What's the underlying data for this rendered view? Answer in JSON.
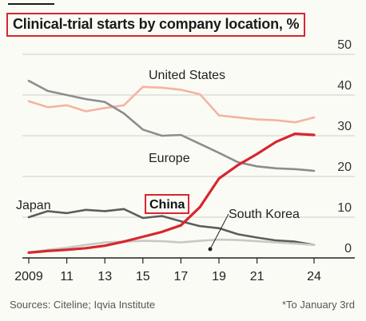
{
  "chart_data": {
    "type": "line",
    "title": "Clinical-trial starts by company location, %",
    "x": [
      2009,
      2010,
      2011,
      2012,
      2013,
      2014,
      2015,
      2016,
      2017,
      2018,
      2019,
      2020,
      2021,
      2022,
      2023,
      2024
    ],
    "x_tick_labels": [
      "2009",
      "11",
      "13",
      "15",
      "17",
      "19",
      "21",
      "24"
    ],
    "x_tick_values": [
      2009,
      2011,
      2013,
      2015,
      2017,
      2019,
      2021,
      2024
    ],
    "y_ticks": [
      0,
      10,
      20,
      30,
      40,
      50
    ],
    "ylim": [
      0,
      50
    ],
    "y_axis_side": "right",
    "grid": "horizontal",
    "series": [
      {
        "name": "United States",
        "color": "#f4b4a0",
        "highlight": false,
        "values": [
          38.5,
          37,
          37.5,
          36,
          36.8,
          37.5,
          42,
          41.8,
          41.3,
          40.2,
          35,
          34.5,
          34,
          33.8,
          33.3,
          34.5
        ]
      },
      {
        "name": "Europe",
        "color": "#8d8d8d",
        "highlight": false,
        "values": [
          43.5,
          41,
          40,
          39,
          38.3,
          35.5,
          31.5,
          30,
          30.2,
          28,
          25.8,
          23.5,
          22.5,
          22,
          21.8,
          21.4
        ]
      },
      {
        "name": "Japan",
        "color": "#5d5d5d",
        "highlight": false,
        "values": [
          10,
          11.5,
          11,
          11.8,
          11.5,
          12,
          9.8,
          10.3,
          9,
          7.8,
          7.3,
          5.8,
          5,
          4.3,
          4,
          3.2
        ]
      },
      {
        "name": "China",
        "color": "#d7262e",
        "highlight": true,
        "values": [
          1.3,
          1.7,
          2,
          2.4,
          3,
          4,
          5.2,
          6.4,
          8,
          12.5,
          19.5,
          22.8,
          25.5,
          28.5,
          30.5,
          30.2
        ]
      },
      {
        "name": "South Korea",
        "color": "#c8c8c4",
        "highlight": false,
        "values": [
          1.3,
          2,
          2.5,
          3.2,
          3.8,
          4,
          4.2,
          4.1,
          3.8,
          4.2,
          4.5,
          4.4,
          4.1,
          3.8,
          3.5,
          3.2
        ]
      }
    ],
    "annotations": {
      "source": "Sources: Citeline; Iqvia Institute",
      "note": "*To January 3rd"
    }
  }
}
